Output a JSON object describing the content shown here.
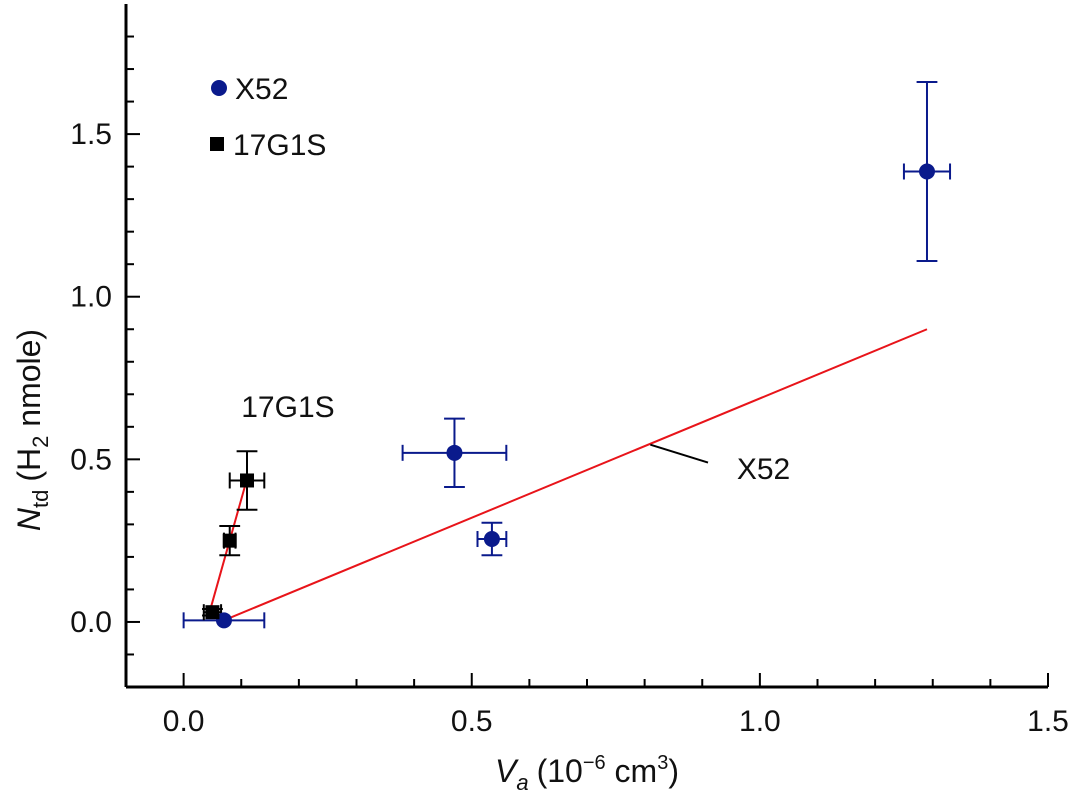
{
  "chart_data": {
    "type": "scatter",
    "xlabel": {
      "main": "V",
      "sub": "a",
      "units": "(10",
      "exp": "−6",
      "units2": " cm",
      "exp2": "3",
      "close": ")"
    },
    "ylabel": {
      "main": "N",
      "sub": "td",
      "units": "(H",
      "sub2": "2",
      "units2": " nmole)"
    },
    "xlim": [
      -0.1,
      1.5
    ],
    "ylim": [
      -0.2,
      1.9
    ],
    "xticks": [
      0.0,
      0.5,
      1.0,
      1.5
    ],
    "xtick_labels": [
      "0.0",
      "0.5",
      "1.0",
      "1.5"
    ],
    "yticks": [
      0.0,
      0.5,
      1.0,
      1.5
    ],
    "ytick_labels": [
      "0.0",
      "0.5",
      "1.0",
      "1.5"
    ],
    "grid": false,
    "legend_position": "top-left",
    "series": [
      {
        "name": "X52",
        "marker": "circle",
        "color": "#0a1a8c",
        "points": [
          {
            "x": 0.07,
            "y": 0.005,
            "xerr": 0.07,
            "yerr": 0.0
          },
          {
            "x": 0.47,
            "y": 0.52,
            "xerr": 0.09,
            "yerr": 0.105
          },
          {
            "x": 0.535,
            "y": 0.255,
            "xerr": 0.025,
            "yerr": 0.05
          },
          {
            "x": 1.29,
            "y": 1.385,
            "xerr": 0.04,
            "yerr": 0.275
          }
        ],
        "fit": {
          "color": "#e8141a",
          "x": [
            0.07,
            1.29
          ],
          "y": [
            0.005,
            0.9
          ]
        }
      },
      {
        "name": "17G1S",
        "marker": "square",
        "color": "#000000",
        "points": [
          {
            "x": 0.05,
            "y": 0.03,
            "xerr": 0.015,
            "yerr": 0.01
          },
          {
            "x": 0.08,
            "y": 0.25,
            "xerr": 0.01,
            "yerr": 0.045
          },
          {
            "x": 0.11,
            "y": 0.435,
            "xerr": 0.03,
            "yerr": 0.09
          }
        ],
        "fit": {
          "color": "#e8141a",
          "x": [
            0.045,
            0.11
          ],
          "y": [
            0.03,
            0.44
          ]
        }
      }
    ],
    "annotations": [
      {
        "text": "17G1S",
        "x": 0.1,
        "y": 0.63
      },
      {
        "text": "X52",
        "x": 0.96,
        "y": 0.44,
        "leader_from": [
          0.81,
          0.545
        ],
        "leader_to": [
          0.91,
          0.49
        ]
      }
    ]
  }
}
